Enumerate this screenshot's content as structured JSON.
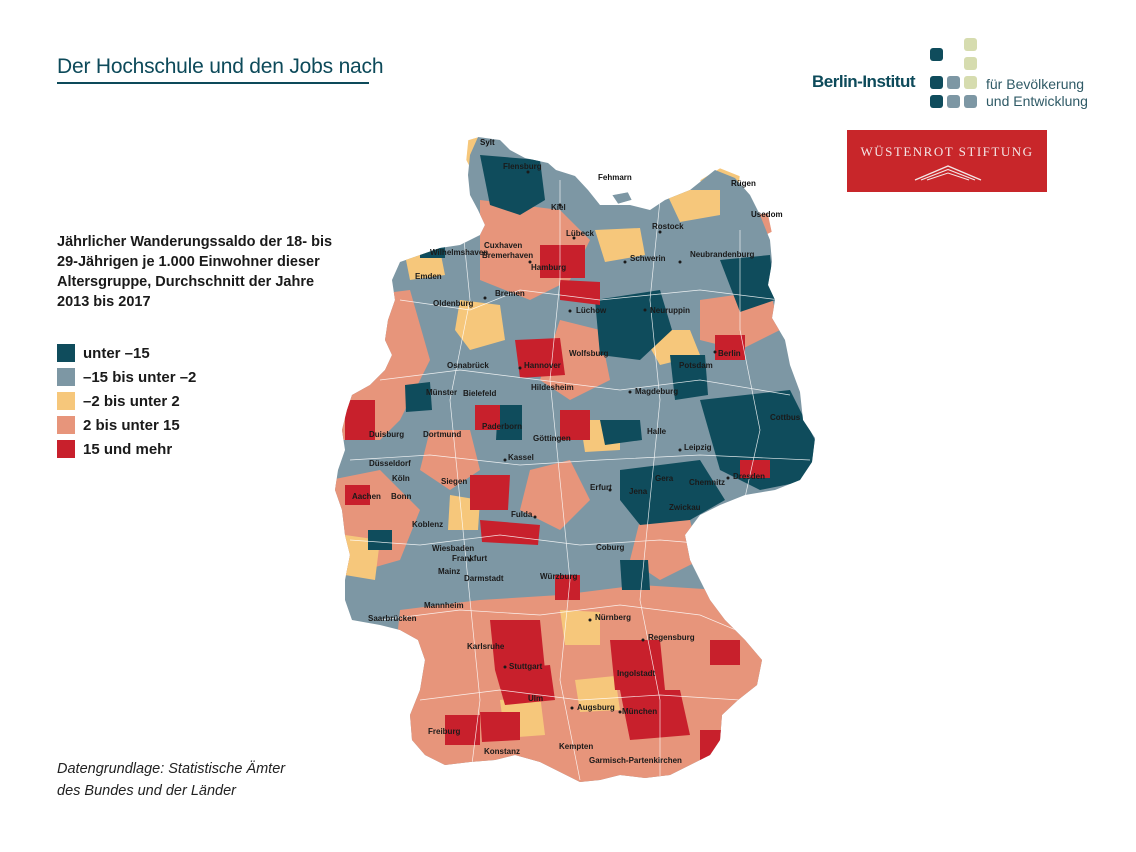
{
  "title": "Der Hochschule und den Jobs nach",
  "logo_berlin_institut": {
    "name": "Berlin-Institut",
    "subtitle_line1": "für Bevölkerung",
    "subtitle_line2": "und Entwicklung"
  },
  "logo_wuestenrot": {
    "name": "WÜSTENROT STIFTUNG"
  },
  "legend": {
    "heading_lines": [
      "Jährlicher Wanderungssaldo der 18- bis",
      "29-Jährigen je 1.000 Einwohner dieser",
      "Altersgruppe, Durchschnitt der Jahre",
      "2013 bis 2017"
    ],
    "items": [
      {
        "label": "unter –15",
        "color": "#0f4c5c"
      },
      {
        "label": "–15 bis unter –2",
        "color": "#7d97a4"
      },
      {
        "label": "–2 bis unter 2",
        "color": "#f6c77b"
      },
      {
        "label": "2 bis unter 15",
        "color": "#e7957b"
      },
      {
        "label": "15 und mehr",
        "color": "#c8202c"
      }
    ]
  },
  "source_lines": [
    "Datengrundlage: Statistische Ämter",
    "des Bundes und der Länder"
  ],
  "map": {
    "islands": [
      "Sylt",
      "Fehmarn",
      "Rügen",
      "Usedom"
    ],
    "cities": [
      "Flensburg",
      "Kiel",
      "Lübeck",
      "Rostock",
      "Cuxhaven",
      "Bremerhaven",
      "Wilhelmshaven",
      "Emden",
      "Hamburg",
      "Schwerin",
      "Neubrandenburg",
      "Oldenburg",
      "Bremen",
      "Lüchow",
      "Neuruppin",
      "Osnabrück",
      "Hannover",
      "Wolfsburg",
      "Berlin",
      "Potsdam",
      "Münster",
      "Bielefeld",
      "Hildesheim",
      "Magdeburg",
      "Cottbus",
      "Duisburg",
      "Dortmund",
      "Paderborn",
      "Göttingen",
      "Halle",
      "Leipzig",
      "Düsseldorf",
      "Kassel",
      "Dresden",
      "Köln",
      "Siegen",
      "Erfurt",
      "Gera",
      "Chemnitz",
      "Aachen",
      "Bonn",
      "Jena",
      "Zwickau",
      "Koblenz",
      "Fulda",
      "Wiesbaden",
      "Frankfurt",
      "Coburg",
      "Mainz",
      "Darmstadt",
      "Würzburg",
      "Mannheim",
      "Nürnberg",
      "Saarbrücken",
      "Regensburg",
      "Karlsruhe",
      "Stuttgart",
      "Ingolstadt",
      "Ulm",
      "Augsburg",
      "München",
      "Freiburg",
      "Konstanz",
      "Kempten",
      "Garmisch-Partenkirchen"
    ]
  }
}
